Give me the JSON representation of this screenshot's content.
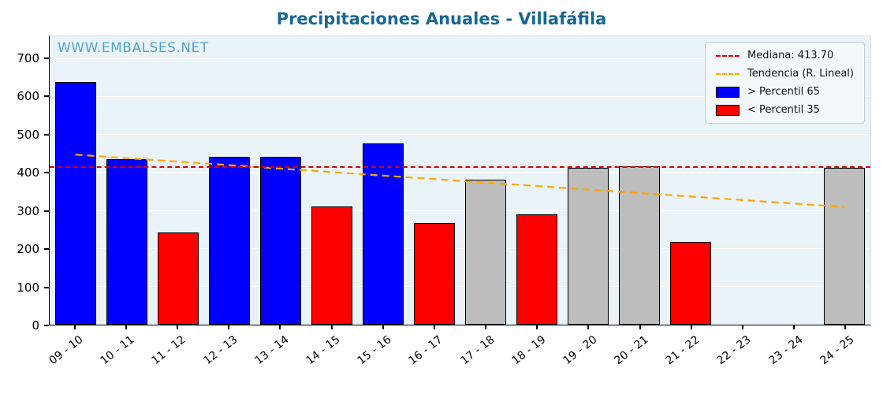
{
  "watermark": "WWW.EMBALSES.NET",
  "chart_data": {
    "type": "bar",
    "title": "Precipitaciones Anuales - Villafáfila",
    "xlabel": "",
    "ylabel": "",
    "categories": [
      "09 - 10",
      "10 - 11",
      "11 - 12",
      "12 - 13",
      "13 - 14",
      "14 - 15",
      "15 - 16",
      "16 - 17",
      "17 - 18",
      "18 - 19",
      "19 - 20",
      "20 - 21",
      "21 - 22",
      "22 - 23",
      "23 - 24",
      "24 - 25"
    ],
    "values": [
      640,
      437,
      242,
      443,
      443,
      311,
      478,
      268,
      382,
      290,
      413,
      417,
      219,
      null,
      null,
      414
    ],
    "bar_colors": [
      "blue",
      "blue",
      "red",
      "blue",
      "blue",
      "red",
      "blue",
      "red",
      "gray",
      "red",
      "gray",
      "gray",
      "red",
      null,
      null,
      "gray"
    ],
    "color_map": {
      "blue": "#0000ff",
      "red": "#ff0000",
      "gray": "#bdbdbd"
    },
    "bar_edge_color": "#000000",
    "median": 413.7,
    "median_color": "#e00000",
    "trend": {
      "start": 448,
      "end": 310,
      "color": "#ffa500"
    },
    "legend": [
      {
        "label": "Mediana: 413.70",
        "type": "line",
        "color": "#e00000"
      },
      {
        "label": "Tendencia (R. Lineal)",
        "type": "line",
        "color": "#ffa500"
      },
      {
        "label": "> Percentil 65",
        "type": "patch",
        "color": "#0000ff"
      },
      {
        "label": "< Percentil 35",
        "type": "patch",
        "color": "#ff0000"
      }
    ],
    "ylim": [
      0,
      760
    ],
    "yticks": [
      0,
      100,
      200,
      300,
      400,
      500,
      600,
      700
    ],
    "grid": true,
    "legend_position": "top-right"
  }
}
